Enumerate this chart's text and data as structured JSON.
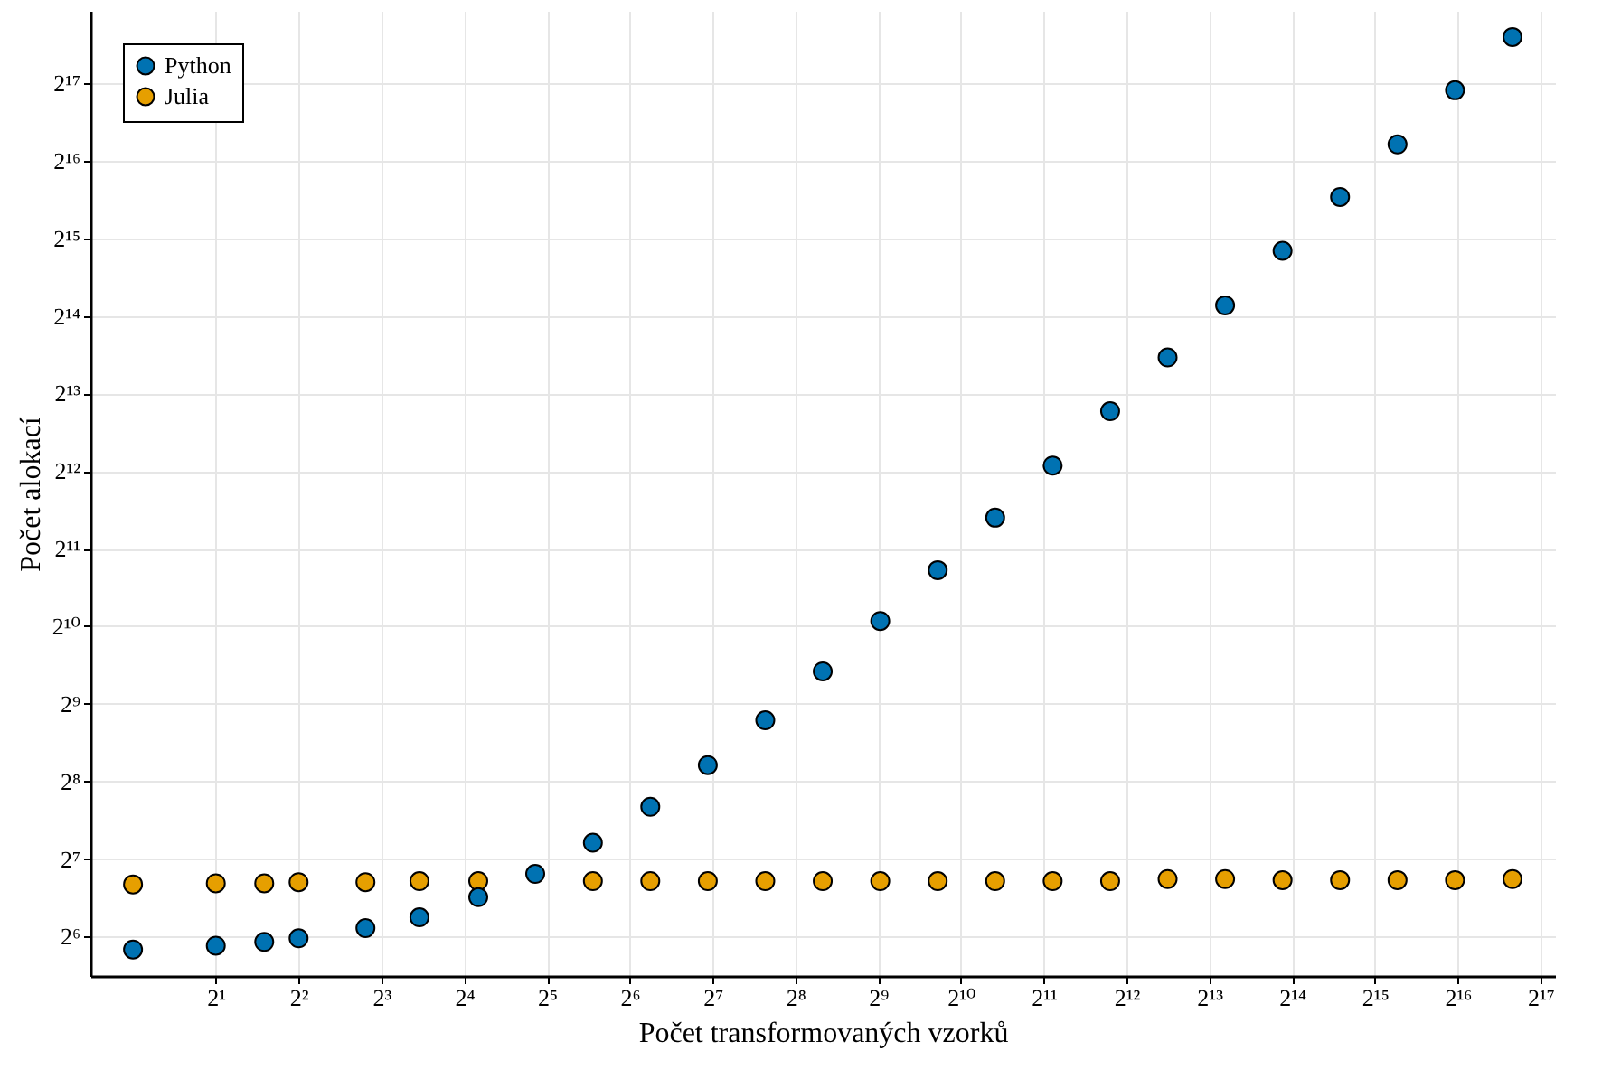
{
  "chart_data": {
    "type": "scatter",
    "xlabel": "Počet transformovaných vzorků",
    "ylabel": "Počet alokací",
    "x": [
      1,
      2,
      3,
      4,
      7,
      11,
      18,
      29,
      47,
      76,
      123,
      199,
      322,
      521,
      843,
      1364,
      2207,
      3571,
      5778,
      9349,
      15127,
      24476,
      39603,
      64079,
      103682
    ],
    "series": [
      {
        "name": "Python",
        "color": "#0072b2",
        "values": [
          57,
          59,
          61,
          63,
          69,
          76,
          91,
          112,
          148,
          204,
          296,
          442,
          684,
          1073,
          1690,
          2700,
          4300,
          6990,
          11300,
          18000,
          29300,
          47400,
          75800,
          123000,
          198000
        ]
      },
      {
        "name": "Julia",
        "color": "#e69f00",
        "values": [
          102,
          103,
          103,
          104,
          104,
          105,
          105,
          null,
          105,
          105,
          105,
          105,
          105,
          105,
          105,
          105,
          105,
          105,
          107,
          107,
          106,
          106,
          106,
          106,
          107
        ]
      }
    ],
    "log": "xy",
    "xlim": [
      0.7,
      148000
    ],
    "ylim": [
      45,
      250000
    ],
    "xticks": [
      {
        "value": 2,
        "label": "2¹"
      },
      {
        "value": 4,
        "label": "2²"
      },
      {
        "value": 8,
        "label": "2³"
      },
      {
        "value": 16,
        "label": "2⁴"
      },
      {
        "value": 32,
        "label": "2⁵"
      },
      {
        "value": 64,
        "label": "2⁶"
      },
      {
        "value": 128,
        "label": "2⁷"
      },
      {
        "value": 256,
        "label": "2⁸"
      },
      {
        "value": 512,
        "label": "2⁹"
      },
      {
        "value": 1024,
        "label": "2¹⁰"
      },
      {
        "value": 2048,
        "label": "2¹¹"
      },
      {
        "value": 4096,
        "label": "2¹²"
      },
      {
        "value": 8192,
        "label": "2¹³"
      },
      {
        "value": 16384,
        "label": "2¹⁴"
      },
      {
        "value": 32768,
        "label": "2¹⁵"
      },
      {
        "value": 65536,
        "label": "2¹⁶"
      },
      {
        "value": 131072,
        "label": "2¹⁷"
      }
    ],
    "yticks": [
      {
        "value": 64,
        "label": "2⁶"
      },
      {
        "value": 128,
        "label": "2⁷"
      },
      {
        "value": 256,
        "label": "2⁸"
      },
      {
        "value": 512,
        "label": "2⁹"
      },
      {
        "value": 1024,
        "label": "2¹⁰"
      },
      {
        "value": 2048,
        "label": "2¹¹"
      },
      {
        "value": 4096,
        "label": "2¹²"
      },
      {
        "value": 8192,
        "label": "2¹³"
      },
      {
        "value": 16384,
        "label": "2¹⁴"
      },
      {
        "value": 32768,
        "label": "2¹⁵"
      },
      {
        "value": 65536,
        "label": "2¹⁶"
      },
      {
        "value": 131072,
        "label": "2¹⁷"
      }
    ],
    "grid": true,
    "legend": "top left",
    "marker": "circle"
  }
}
